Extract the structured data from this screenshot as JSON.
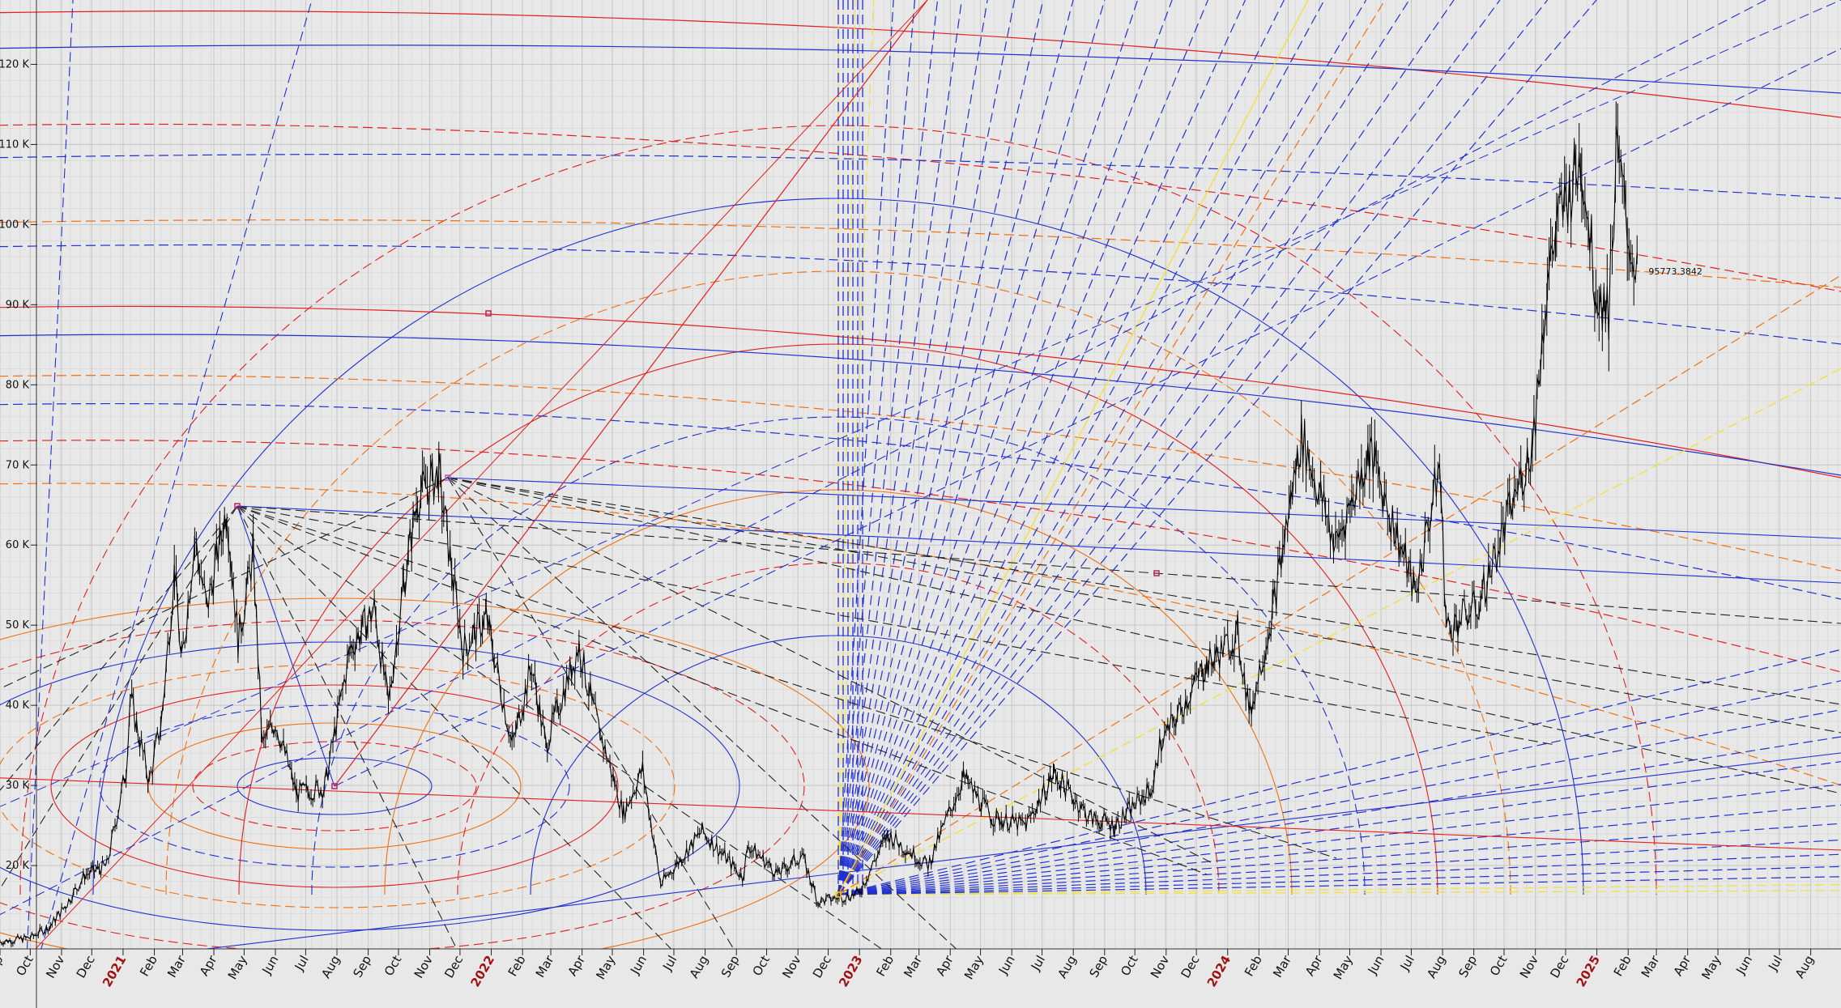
{
  "chart_data": {
    "type": "line",
    "title": "",
    "xlabel": "",
    "ylabel": "",
    "ylim": [
      10000,
      125000
    ],
    "xlim": [
      "2020-09-01",
      "2025-08-31"
    ],
    "y_ticks": [
      {
        "value": 20000,
        "label": "20 K"
      },
      {
        "value": 30000,
        "label": "30 K"
      },
      {
        "value": 40000,
        "label": "40 K"
      },
      {
        "value": 50000,
        "label": "50 K"
      },
      {
        "value": 60000,
        "label": "60 K"
      },
      {
        "value": 70000,
        "label": "70 K"
      },
      {
        "value": 80000,
        "label": "80 K"
      },
      {
        "value": 90000,
        "label": "90 K"
      },
      {
        "value": 100000,
        "label": "100 K"
      },
      {
        "value": 110000,
        "label": "110 K"
      },
      {
        "value": 120000,
        "label": "120 K"
      }
    ],
    "x_ticks": [
      {
        "date": "2020-09-01",
        "label": "Sep",
        "year": false
      },
      {
        "date": "2020-10-01",
        "label": "Oct",
        "year": false
      },
      {
        "date": "2020-11-01",
        "label": "Nov",
        "year": false
      },
      {
        "date": "2020-12-01",
        "label": "Dec",
        "year": false
      },
      {
        "date": "2021-01-01",
        "label": "2021",
        "year": true
      },
      {
        "date": "2021-02-01",
        "label": "Feb",
        "year": false
      },
      {
        "date": "2021-03-01",
        "label": "Mar",
        "year": false
      },
      {
        "date": "2021-04-01",
        "label": "Apr",
        "year": false
      },
      {
        "date": "2021-05-01",
        "label": "May",
        "year": false
      },
      {
        "date": "2021-06-01",
        "label": "Jun",
        "year": false
      },
      {
        "date": "2021-07-01",
        "label": "Jul",
        "year": false
      },
      {
        "date": "2021-08-01",
        "label": "Aug",
        "year": false
      },
      {
        "date": "2021-09-01",
        "label": "Sep",
        "year": false
      },
      {
        "date": "2021-10-01",
        "label": "Oct",
        "year": false
      },
      {
        "date": "2021-11-01",
        "label": "Nov",
        "year": false
      },
      {
        "date": "2021-12-01",
        "label": "Dec",
        "year": false
      },
      {
        "date": "2022-01-01",
        "label": "2022",
        "year": true
      },
      {
        "date": "2022-02-01",
        "label": "Feb",
        "year": false
      },
      {
        "date": "2022-03-01",
        "label": "Mar",
        "year": false
      },
      {
        "date": "2022-04-01",
        "label": "Apr",
        "year": false
      },
      {
        "date": "2022-05-01",
        "label": "May",
        "year": false
      },
      {
        "date": "2022-06-01",
        "label": "Jun",
        "year": false
      },
      {
        "date": "2022-07-01",
        "label": "Jul",
        "year": false
      },
      {
        "date": "2022-08-01",
        "label": "Aug",
        "year": false
      },
      {
        "date": "2022-09-01",
        "label": "Sep",
        "year": false
      },
      {
        "date": "2022-10-01",
        "label": "Oct",
        "year": false
      },
      {
        "date": "2022-11-01",
        "label": "Nov",
        "year": false
      },
      {
        "date": "2022-12-01",
        "label": "Dec",
        "year": false
      },
      {
        "date": "2023-01-01",
        "label": "2023",
        "year": true
      },
      {
        "date": "2023-02-01",
        "label": "Feb",
        "year": false
      },
      {
        "date": "2023-03-01",
        "label": "Mar",
        "year": false
      },
      {
        "date": "2023-04-01",
        "label": "Apr",
        "year": false
      },
      {
        "date": "2023-05-01",
        "label": "May",
        "year": false
      },
      {
        "date": "2023-06-01",
        "label": "Jun",
        "year": false
      },
      {
        "date": "2023-07-01",
        "label": "Jul",
        "year": false
      },
      {
        "date": "2023-08-01",
        "label": "Aug",
        "year": false
      },
      {
        "date": "2023-09-01",
        "label": "Sep",
        "year": false
      },
      {
        "date": "2023-10-01",
        "label": "Oct",
        "year": false
      },
      {
        "date": "2023-11-01",
        "label": "Nov",
        "year": false
      },
      {
        "date": "2023-12-01",
        "label": "Dec",
        "year": false
      },
      {
        "date": "2024-01-01",
        "label": "2024",
        "year": true
      },
      {
        "date": "2024-02-01",
        "label": "Feb",
        "year": false
      },
      {
        "date": "2024-03-01",
        "label": "Mar",
        "year": false
      },
      {
        "date": "2024-04-01",
        "label": "Apr",
        "year": false
      },
      {
        "date": "2024-05-01",
        "label": "May",
        "year": false
      },
      {
        "date": "2024-06-01",
        "label": "Jun",
        "year": false
      },
      {
        "date": "2024-07-01",
        "label": "Jul",
        "year": false
      },
      {
        "date": "2024-08-01",
        "label": "Aug",
        "year": false
      },
      {
        "date": "2024-09-01",
        "label": "Sep",
        "year": false
      },
      {
        "date": "2024-10-01",
        "label": "Oct",
        "year": false
      },
      {
        "date": "2024-11-01",
        "label": "Nov",
        "year": false
      },
      {
        "date": "2024-12-01",
        "label": "Dec",
        "year": false
      },
      {
        "date": "2025-01-01",
        "label": "2025",
        "year": true
      },
      {
        "date": "2025-02-01",
        "label": "Feb",
        "year": false
      },
      {
        "date": "2025-03-01",
        "label": "Mar",
        "year": false
      },
      {
        "date": "2025-04-01",
        "label": "Apr",
        "year": false
      },
      {
        "date": "2025-05-01",
        "label": "May",
        "year": false
      },
      {
        "date": "2025-06-01",
        "label": "Jun",
        "year": false
      },
      {
        "date": "2025-07-01",
        "label": "Jul",
        "year": false
      },
      {
        "date": "2025-08-01",
        "label": "Aug",
        "year": false
      }
    ],
    "grid": true,
    "series": [
      {
        "color": "#000000",
        "points": [
          [
            "2020-09-01",
            10500
          ],
          [
            "2020-10-01",
            11000
          ],
          [
            "2020-10-21",
            12500
          ],
          [
            "2020-11-05",
            15000
          ],
          [
            "2020-11-24",
            18800
          ],
          [
            "2020-12-16",
            20000
          ],
          [
            "2021-01-04",
            32000
          ],
          [
            "2021-01-08",
            41000
          ],
          [
            "2021-01-27",
            30500
          ],
          [
            "2021-02-08",
            38000
          ],
          [
            "2021-02-21",
            57000
          ],
          [
            "2021-02-28",
            45000
          ],
          [
            "2021-03-13",
            61000
          ],
          [
            "2021-03-25",
            52000
          ],
          [
            "2021-04-14",
            64800
          ],
          [
            "2021-04-25",
            48000
          ],
          [
            "2021-05-10",
            59000
          ],
          [
            "2021-05-19",
            35000
          ],
          [
            "2021-06-01",
            38000
          ],
          [
            "2021-06-22",
            29000
          ],
          [
            "2021-07-20",
            29800
          ],
          [
            "2021-08-14",
            47000
          ],
          [
            "2021-09-07",
            52000
          ],
          [
            "2021-09-21",
            40000
          ],
          [
            "2021-10-06",
            55000
          ],
          [
            "2021-10-20",
            66000
          ],
          [
            "2021-11-10",
            68800
          ],
          [
            "2021-11-26",
            54000
          ],
          [
            "2021-12-04",
            47000
          ],
          [
            "2021-12-27",
            51000
          ],
          [
            "2022-01-22",
            35000
          ],
          [
            "2022-02-10",
            45000
          ],
          [
            "2022-02-24",
            35000
          ],
          [
            "2022-03-29",
            47500
          ],
          [
            "2022-04-11",
            40000
          ],
          [
            "2022-05-12",
            26500
          ],
          [
            "2022-05-31",
            32000
          ],
          [
            "2022-06-18",
            17600
          ],
          [
            "2022-07-29",
            24300
          ],
          [
            "2022-09-07",
            18600
          ],
          [
            "2022-09-13",
            22500
          ],
          [
            "2022-10-12",
            19000
          ],
          [
            "2022-11-05",
            21300
          ],
          [
            "2022-11-21",
            15500
          ],
          [
            "2022-12-31",
            16500
          ],
          [
            "2023-01-29",
            23900
          ],
          [
            "2023-03-10",
            20000
          ],
          [
            "2023-04-14",
            31000
          ],
          [
            "2023-05-12",
            26000
          ],
          [
            "2023-06-15",
            25000
          ],
          [
            "2023-07-13",
            31500
          ],
          [
            "2023-08-17",
            26000
          ],
          [
            "2023-09-11",
            25000
          ],
          [
            "2023-10-20",
            30000
          ],
          [
            "2023-10-24",
            34500
          ],
          [
            "2023-12-08",
            44500
          ],
          [
            "2024-01-11",
            48800
          ],
          [
            "2024-01-23",
            39000
          ],
          [
            "2024-02-15",
            52000
          ],
          [
            "2024-03-14",
            73700
          ],
          [
            "2024-04-17",
            60000
          ],
          [
            "2024-05-21",
            71900
          ],
          [
            "2024-07-05",
            54000
          ],
          [
            "2024-07-29",
            70000
          ],
          [
            "2024-08-05",
            49500
          ],
          [
            "2024-09-06",
            52600
          ],
          [
            "2024-10-29",
            72500
          ],
          [
            "2024-11-13",
            93000
          ],
          [
            "2024-11-22",
            99600
          ],
          [
            "2024-12-17",
            108300
          ],
          [
            "2024-12-31",
            92000
          ],
          [
            "2025-01-13",
            89200
          ],
          [
            "2025-01-20",
            109000
          ],
          [
            "2025-02-05",
            96000
          ],
          [
            "2025-02-10",
            95773
          ]
        ]
      }
    ],
    "last_value_label": "95773.3842"
  }
}
